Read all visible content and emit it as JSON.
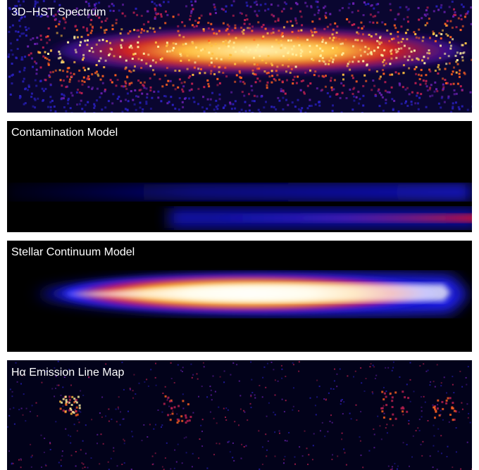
{
  "panels": [
    {
      "label": "3D−HST Spectrum"
    },
    {
      "label": "Contamination Model"
    },
    {
      "label": "Stellar Continuum Model"
    },
    {
      "label": "Hα Emission Line Map"
    }
  ]
}
